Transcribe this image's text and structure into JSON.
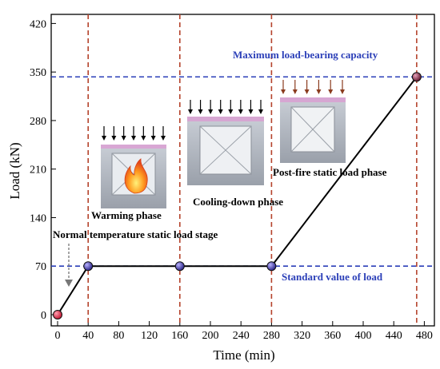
{
  "chart_data": {
    "type": "line",
    "xlabel": "Time (min)",
    "ylabel": "Load (kN)",
    "xlim": [
      0,
      480
    ],
    "ylim": [
      0,
      420
    ],
    "xticks": [
      "0",
      "40",
      "80",
      "120",
      "160",
      "200",
      "240",
      "280",
      "320",
      "360",
      "400",
      "440",
      "480"
    ],
    "yticks": [
      "0",
      "70",
      "140",
      "210",
      "280",
      "350",
      "420"
    ],
    "x": [
      0,
      40,
      160,
      280,
      470
    ],
    "y": [
      0,
      70,
      70,
      70,
      343
    ],
    "marker_colors": [
      "#e0203c",
      "#2f2a9e",
      "#2f2a9e",
      "#2f2a9e",
      "#7a1f3a"
    ],
    "line_color": "#000000",
    "phase_lines_x": [
      40,
      160,
      280,
      470
    ],
    "phase_line_color": "#b5432c",
    "reference_lines": [
      {
        "y": 343,
        "label": "Maximum load-bearing capacity",
        "color": "#2b3fb8"
      },
      {
        "y": 70,
        "label": "Standard value of load",
        "color": "#2b3fb8"
      }
    ],
    "annotations": {
      "warming": "Warming phase",
      "cooling": "Cooling-down phase",
      "postfire": "Post-fire static load phase",
      "normal": "Normal temperature static load stage"
    },
    "illustrations": [
      {
        "name": "warming-specimen-photo",
        "icons": "fire-icon"
      },
      {
        "name": "cooling-specimen-photo"
      },
      {
        "name": "postfire-specimen-photo"
      }
    ]
  }
}
